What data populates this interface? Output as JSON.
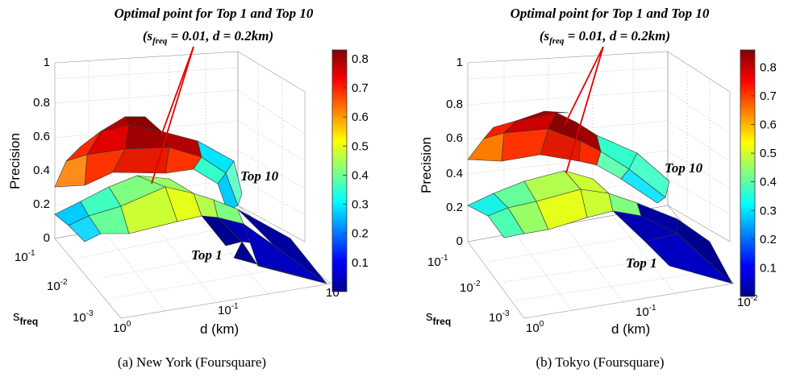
{
  "panels": [
    {
      "caption": "(a) New York (Foursquare)",
      "title_line1": "Optimal point for Top 1 and Top 10",
      "title_line2": "(s",
      "title_sub": "freq",
      "title_rest": " = 0.01, d = 0.2km)",
      "label_top10": "Top 10",
      "label_top1": "Top 1",
      "zlabel": "Precision",
      "xlabel": "d (km)",
      "ylabel": "s",
      "ylabel_sub": "freq",
      "zticks": [
        "0",
        "0.2",
        "0.4",
        "0.6",
        "0.8",
        "1"
      ],
      "colorbar_ticks": [
        "0.1",
        "0.2",
        "0.3",
        "0.4",
        "0.5",
        "0.6",
        "0.7",
        "0.8"
      ],
      "colorbar_max": 0.83,
      "d_ticks": [
        "10",
        "10",
        "10"
      ],
      "d_exps": [
        "0",
        "-1",
        "-2"
      ],
      "s_ticks": [
        "10",
        "10",
        "10"
      ],
      "s_exps": [
        "-1",
        "-2",
        "-3"
      ]
    },
    {
      "caption": "(b) Tokyo (Foursquare)",
      "title_line1": "Optimal point for Top 1 and Top 10",
      "title_line2": "(s",
      "title_sub": "freq",
      "title_rest": " = 0.01, d = 0.2km)",
      "label_top10": "Top 10",
      "label_top1": "Top 1",
      "zlabel": "Precision",
      "xlabel": "d (km)",
      "ylabel": "s",
      "ylabel_sub": "freq",
      "zticks": [
        "0",
        "0.2",
        "0.4",
        "0.6",
        "0.8",
        "1"
      ],
      "colorbar_ticks": [
        "0.1",
        "0.2",
        "0.3",
        "0.4",
        "0.5",
        "0.6",
        "0.7",
        "0.8"
      ],
      "colorbar_max": 0.86,
      "d_ticks": [
        "10",
        "10",
        "10"
      ],
      "d_exps": [
        "0",
        "-1",
        "-2"
      ],
      "s_ticks": [
        "10",
        "10",
        "10"
      ],
      "s_exps": [
        "-1",
        "-2",
        "-3"
      ]
    }
  ],
  "chart_data": [
    {
      "type": "surface",
      "title": "Optimal point for Top 1 and Top 10 (s_freq = 0.01, d = 0.2km)",
      "xlabel": "d (km)",
      "ylabel": "s_freq",
      "zlabel": "Precision",
      "zlim": [
        0,
        1
      ],
      "optimal_point": {
        "s_freq": 0.01,
        "d_km": 0.2
      },
      "series": [
        {
          "name": "Top 10",
          "z_range": [
            0.28,
            0.83
          ]
        },
        {
          "name": "Top 1",
          "z_range": [
            0.0,
            0.5
          ]
        }
      ],
      "colorbar": [
        0,
        0.83
      ]
    },
    {
      "type": "surface",
      "title": "Optimal point for Top 1 and Top 10 (s_freq = 0.01, d = 0.2km)",
      "xlabel": "d (km)",
      "ylabel": "s_freq",
      "zlabel": "Precision",
      "zlim": [
        0,
        1
      ],
      "optimal_point": {
        "s_freq": 0.01,
        "d_km": 0.2
      },
      "series": [
        {
          "name": "Top 10",
          "z_range": [
            0.4,
            0.86
          ]
        },
        {
          "name": "Top 1",
          "z_range": [
            0.0,
            0.45
          ]
        }
      ],
      "colorbar": [
        0,
        0.86
      ]
    }
  ]
}
